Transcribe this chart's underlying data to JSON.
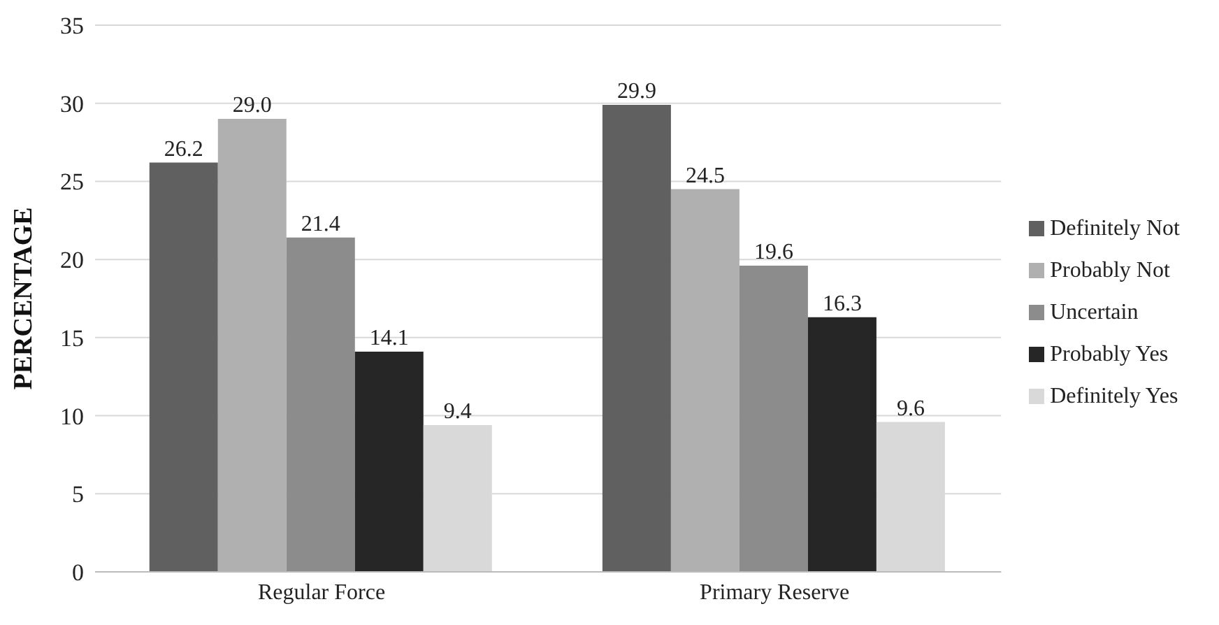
{
  "chart_data": {
    "type": "bar",
    "ylabel": "PERCENTAGE",
    "categories": [
      "Regular Force",
      "Primary Reserve"
    ],
    "series": [
      {
        "name": "Definitely Not",
        "color": "#606060",
        "values": [
          26.2,
          29.9
        ],
        "value_labels": [
          "26.2",
          "29.9"
        ]
      },
      {
        "name": "Probably Not",
        "color": "#b0b0b0",
        "values": [
          29.0,
          24.5
        ],
        "value_labels": [
          "29.0",
          "24.5"
        ]
      },
      {
        "name": "Uncertain",
        "color": "#8c8c8c",
        "values": [
          21.4,
          19.6
        ],
        "value_labels": [
          "21.4",
          "19.6"
        ]
      },
      {
        "name": "Probably Yes",
        "color": "#262626",
        "values": [
          14.1,
          16.3
        ],
        "value_labels": [
          "14.1",
          "16.3"
        ]
      },
      {
        "name": "Definitely Yes",
        "color": "#d9d9d9",
        "values": [
          9.4,
          9.6
        ],
        "value_labels": [
          "9.4",
          "9.6"
        ]
      }
    ],
    "ylim": [
      0,
      35
    ],
    "yticks": [
      0,
      5,
      10,
      15,
      20,
      25,
      30,
      35
    ],
    "grid": "y",
    "legend": "right"
  }
}
